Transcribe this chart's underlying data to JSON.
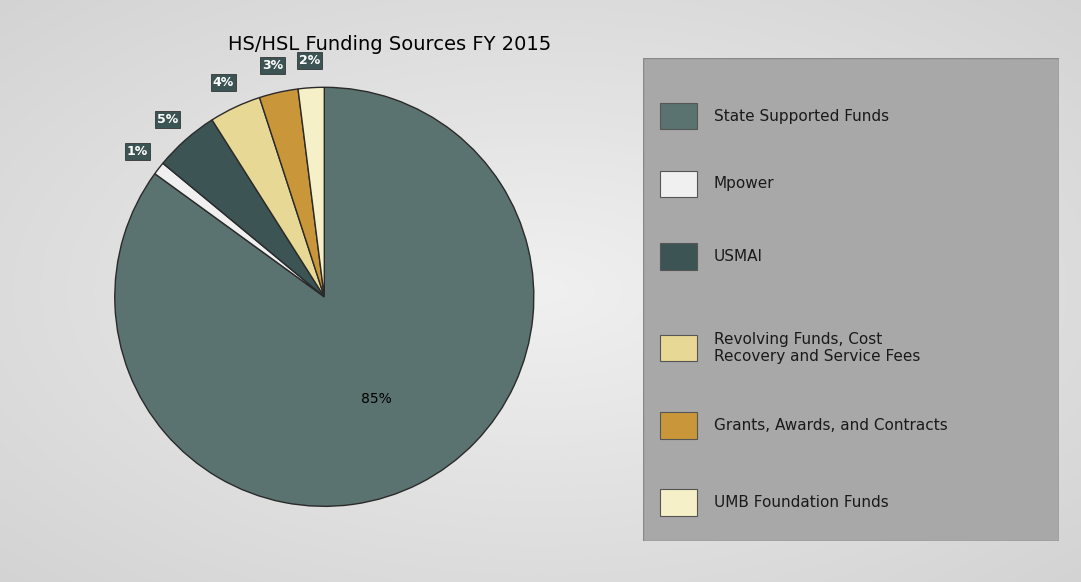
{
  "title": "HS/HSL Funding Sources FY 2015",
  "labels": [
    "State Supported Funds",
    "Mpower",
    "USMAI",
    "Revolving Funds, Cost\nRecovery and Service Fees",
    "Grants, Awards, and Contracts",
    "UMB Foundation Funds"
  ],
  "values": [
    85,
    1,
    5,
    4,
    3,
    2
  ],
  "colors": [
    "#5a7370",
    "#f0f0f0",
    "#3d5454",
    "#e8d896",
    "#c9973a",
    "#f5f0c8"
  ],
  "pct_labels": [
    "85%",
    "1%",
    "5%",
    "4%",
    "3%",
    "2%"
  ],
  "title_fontsize": 14,
  "label_fontsize": 10,
  "legend_fontsize": 11
}
